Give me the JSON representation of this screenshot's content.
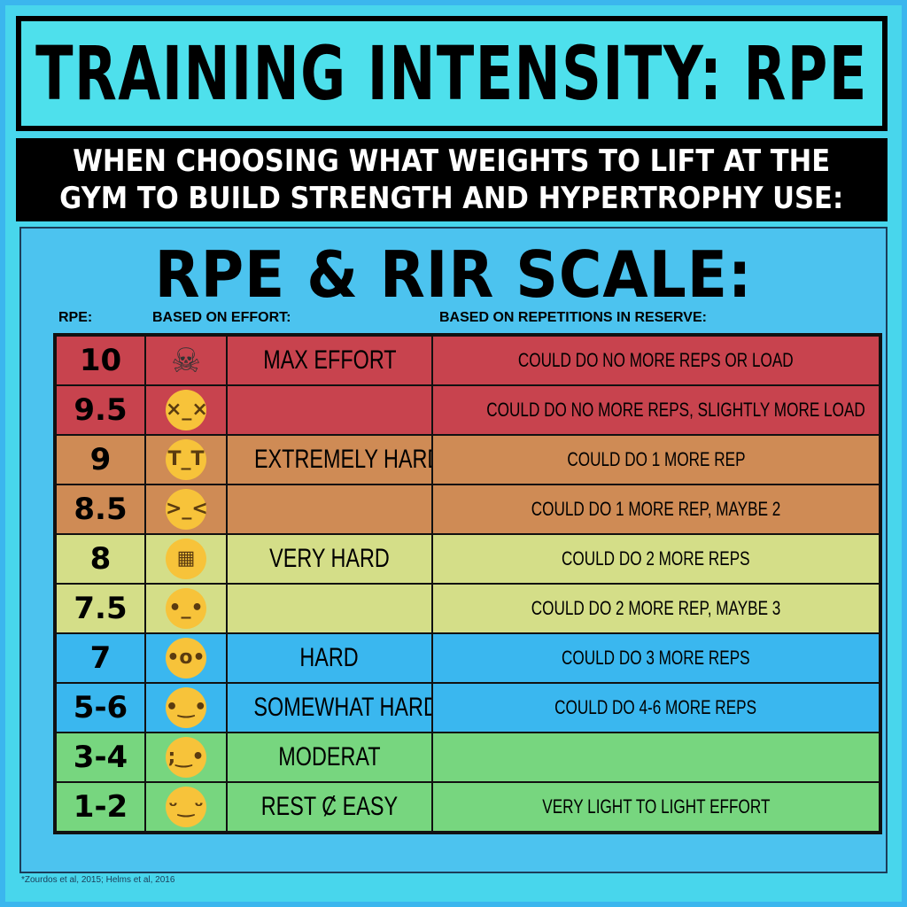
{
  "title": "TRAINING INTENSITY: RPE",
  "subtitle": "WHEN CHOOSING WHAT WEIGHTS TO LIFT AT THE\nGYM TO BUILD STRENGTH AND HYPERTROPHY USE:",
  "scale_title": "RPE & RIR SCALE:",
  "columns": {
    "rpe": "RPE:",
    "effort": "BASED ON EFFORT:",
    "rir": "BASED ON REPETITIONS IN RESERVE:"
  },
  "rows": [
    {
      "rpe": "10",
      "icon": "skull-crossbones-icon",
      "glyph": "☠",
      "effort": "MAX EFFORT",
      "rir": "COULD DO NO MORE REPS OR LOAD",
      "color": "#c8434e"
    },
    {
      "rpe": "9.5",
      "icon": "dizzy-face-icon",
      "glyph": "×_×",
      "effort": "",
      "rir": "COULD DO NO MORE REPS, SLIGHTLY MORE LOAD",
      "color": "#c8434e"
    },
    {
      "rpe": "9",
      "icon": "crying-face-icon",
      "glyph": "T_T",
      "effort": "EXTREMELY HARD",
      "rir": "COULD DO 1 MORE REP",
      "color": "#cf8b55"
    },
    {
      "rpe": "8.5",
      "icon": "weary-face-icon",
      "glyph": ">_<",
      "effort": "",
      "rir": "COULD DO 1 MORE REP, MAYBE 2",
      "color": "#cf8b55"
    },
    {
      "rpe": "8",
      "icon": "grimacing-face-icon",
      "glyph": "▦",
      "effort": "VERY HARD",
      "rir": "COULD DO 2 MORE REPS",
      "color": "#d4de88"
    },
    {
      "rpe": "7.5",
      "icon": "neutral-face-icon",
      "glyph": "•_•",
      "effort": "",
      "rir": "COULD DO 2 MORE REP, MAYBE 3",
      "color": "#d4de88"
    },
    {
      "rpe": "7",
      "icon": "hushed-face-icon",
      "glyph": "•o•",
      "effort": "HARD",
      "rir": "COULD DO 3 MORE REPS",
      "color": "#3ab7ef"
    },
    {
      "rpe": "5-6",
      "icon": "slightly-smiling-face-icon",
      "glyph": "•‿•",
      "effort": "SOMEWHAT HARD",
      "rir": "COULD DO 4-6 MORE REPS",
      "color": "#3ab7ef"
    },
    {
      "rpe": "3-4",
      "icon": "winking-face-icon",
      "glyph": ";‿•",
      "effort": "MODERAT",
      "rir": "",
      "color": "#77d67f"
    },
    {
      "rpe": "1-2",
      "icon": "relieved-face-icon",
      "glyph": "ᵕ‿ᵕ",
      "effort": "REST Ȼ EASY",
      "rir": "VERY LIGHT TO LIGHT EFFORT",
      "color": "#77d67f"
    }
  ],
  "footnote": "*Zourdos et al, 2015; Helms et al, 2016"
}
